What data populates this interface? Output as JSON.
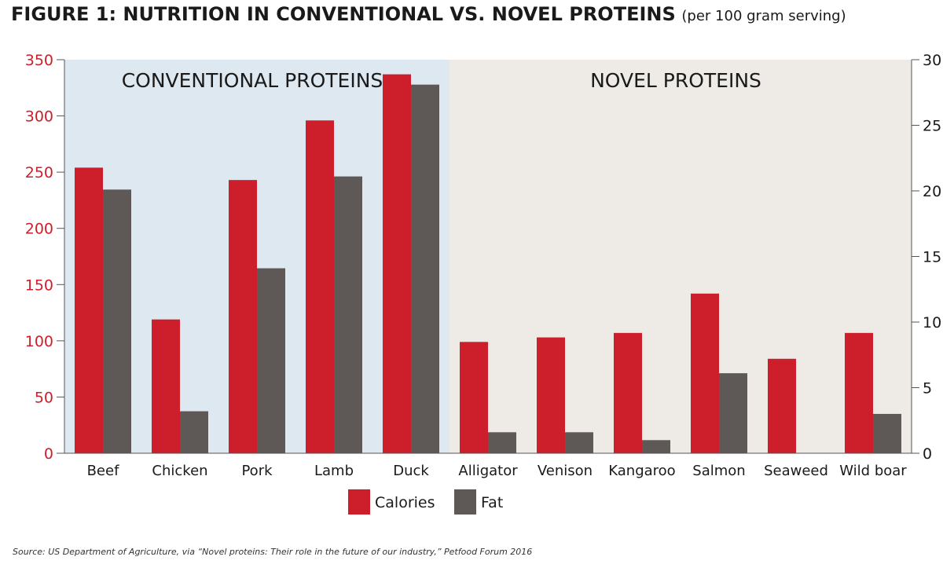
{
  "figure": {
    "title": "FIGURE 1: NUTRITION IN CONVENTIONAL VS. NOVEL PROTEINS",
    "subtitle": "(per 100 gram serving)",
    "source": "Source: US Department of Agriculture, via “Novel proteins: Their role in the future of our industry,” Petfood Forum 2016"
  },
  "colors": {
    "calories": "#cc1f2b",
    "fat": "#5e5856",
    "conventional_bg": "#dde8f0",
    "novel_bg": "#eeebe7",
    "left_axis_text": "#cc1f2b",
    "right_axis_text": "#1a1a1a"
  },
  "chart_data": {
    "type": "bar",
    "categories": [
      "Beef",
      "Chicken",
      "Pork",
      "Lamb",
      "Duck",
      "Alligator",
      "Venison",
      "Kangaroo",
      "Salmon",
      "Seaweed",
      "Wild boar"
    ],
    "groups": [
      {
        "label": "CONVENTIONAL PROTEINS",
        "categories": [
          "Beef",
          "Chicken",
          "Pork",
          "Lamb",
          "Duck"
        ]
      },
      {
        "label": "NOVEL PROTEINS",
        "categories": [
          "Alligator",
          "Venison",
          "Kangaroo",
          "Salmon",
          "Seaweed",
          "Wild boar"
        ]
      }
    ],
    "series": [
      {
        "name": "Calories",
        "axis": "left",
        "values": [
          254,
          119,
          243,
          296,
          337,
          99,
          103,
          107,
          142,
          84,
          107
        ]
      },
      {
        "name": "Fat",
        "axis": "right",
        "values": [
          20.1,
          3.2,
          14.1,
          21.1,
          28.1,
          1.6,
          1.6,
          1.0,
          6.1,
          0,
          3.0
        ]
      }
    ],
    "y_left": {
      "min": 0,
      "max": 350,
      "ticks": [
        0,
        50,
        100,
        150,
        200,
        250,
        300,
        350
      ]
    },
    "y_right": {
      "min": 0,
      "max": 30,
      "ticks": [
        0,
        5,
        10,
        15,
        20,
        25,
        30
      ]
    },
    "legend": {
      "position": "bottom-center",
      "items": [
        "Calories",
        "Fat"
      ]
    },
    "grid": false
  }
}
